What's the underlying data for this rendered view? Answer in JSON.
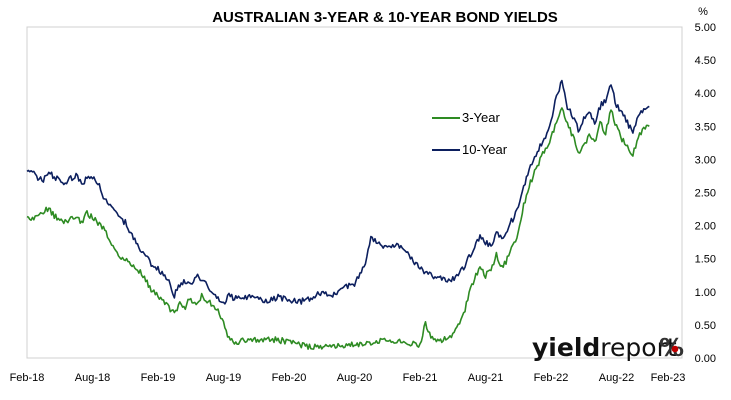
{
  "chart_data": {
    "type": "line",
    "title": "AUSTRALIAN 3-YEAR & 10-YEAR BOND YIELDS",
    "ylabel": "%",
    "ylim": [
      0,
      5
    ],
    "y_ticks": [
      "0.00",
      "0.50",
      "1.00",
      "1.50",
      "2.00",
      "2.50",
      "3.00",
      "3.50",
      "4.00",
      "4.50",
      "5.00"
    ],
    "x_ticks": [
      "Feb-18",
      "Aug-18",
      "Feb-19",
      "Aug-19",
      "Feb-20",
      "Aug-20",
      "Feb-21",
      "Aug-21",
      "Feb-22",
      "Aug-22",
      "Feb-23"
    ],
    "grid": false,
    "legend": "center-right",
    "series": [
      {
        "name": "3-Year",
        "color": "#2e8b23",
        "points": [
          [
            0,
            2.18
          ],
          [
            0.5,
            2.08
          ],
          [
            1,
            2.15
          ],
          [
            1.5,
            2.22
          ],
          [
            2,
            2.25
          ],
          [
            2.5,
            2.15
          ],
          [
            3,
            2.1
          ],
          [
            3.5,
            2.05
          ],
          [
            4,
            2.12
          ],
          [
            4.5,
            2.1
          ],
          [
            5,
            2.05
          ],
          [
            5.5,
            2.18
          ],
          [
            6,
            2.12
          ],
          [
            6.5,
            2.05
          ],
          [
            7,
            1.95
          ],
          [
            7.5,
            1.8
          ],
          [
            8,
            1.65
          ],
          [
            8.5,
            1.55
          ],
          [
            9,
            1.5
          ],
          [
            9.5,
            1.42
          ],
          [
            10,
            1.35
          ],
          [
            10.5,
            1.28
          ],
          [
            11,
            1.15
          ],
          [
            11.5,
            1.0
          ],
          [
            12,
            0.95
          ],
          [
            12.5,
            0.85
          ],
          [
            13,
            0.75
          ],
          [
            13.5,
            0.68
          ],
          [
            14,
            0.82
          ],
          [
            14.5,
            0.78
          ],
          [
            15,
            0.9
          ],
          [
            15.5,
            0.8
          ],
          [
            16,
            0.95
          ],
          [
            16.5,
            0.85
          ],
          [
            17,
            0.8
          ],
          [
            17.5,
            0.72
          ],
          [
            18,
            0.55
          ],
          [
            18.5,
            0.28
          ],
          [
            19,
            0.25
          ],
          [
            20,
            0.26
          ],
          [
            21,
            0.27
          ],
          [
            22,
            0.28
          ],
          [
            23,
            0.27
          ],
          [
            24,
            0.25
          ],
          [
            25,
            0.2
          ],
          [
            26,
            0.17
          ],
          [
            27,
            0.18
          ],
          [
            28,
            0.16
          ],
          [
            29,
            0.19
          ],
          [
            30,
            0.2
          ],
          [
            31,
            0.22
          ],
          [
            32,
            0.25
          ],
          [
            33,
            0.28
          ],
          [
            34,
            0.25
          ],
          [
            35,
            0.22
          ],
          [
            36,
            0.2
          ],
          [
            36.5,
            0.55
          ],
          [
            37,
            0.3
          ],
          [
            38,
            0.25
          ],
          [
            39,
            0.35
          ],
          [
            40,
            0.65
          ],
          [
            40.5,
            1.0
          ],
          [
            41,
            1.2
          ],
          [
            41.5,
            1.35
          ],
          [
            42,
            1.25
          ],
          [
            42.5,
            1.3
          ],
          [
            43,
            1.55
          ],
          [
            43.5,
            1.35
          ],
          [
            44,
            1.5
          ],
          [
            44.5,
            1.7
          ],
          [
            45,
            1.9
          ],
          [
            45.5,
            2.3
          ],
          [
            46,
            2.6
          ],
          [
            46.5,
            2.8
          ],
          [
            47,
            3.0
          ],
          [
            47.5,
            3.15
          ],
          [
            48,
            3.3
          ],
          [
            48.5,
            3.6
          ],
          [
            49,
            3.8
          ],
          [
            49.5,
            3.55
          ],
          [
            50,
            3.35
          ],
          [
            50.5,
            3.1
          ],
          [
            51,
            3.2
          ],
          [
            51.5,
            3.35
          ],
          [
            52,
            3.25
          ],
          [
            52.5,
            3.55
          ],
          [
            53,
            3.4
          ],
          [
            53.5,
            3.75
          ],
          [
            54,
            3.5
          ],
          [
            54.5,
            3.3
          ],
          [
            55,
            3.2
          ],
          [
            55.5,
            3.05
          ],
          [
            56,
            3.35
          ],
          [
            56.5,
            3.45
          ],
          [
            57,
            3.5
          ]
        ]
      },
      {
        "name": "10-Year",
        "color": "#0c1f5e",
        "points": [
          [
            0,
            2.85
          ],
          [
            0.5,
            2.82
          ],
          [
            1,
            2.72
          ],
          [
            1.5,
            2.68
          ],
          [
            2,
            2.82
          ],
          [
            2.5,
            2.72
          ],
          [
            3,
            2.7
          ],
          [
            3.5,
            2.62
          ],
          [
            4,
            2.72
          ],
          [
            4.5,
            2.75
          ],
          [
            5,
            2.65
          ],
          [
            5.5,
            2.7
          ],
          [
            6,
            2.72
          ],
          [
            6.5,
            2.65
          ],
          [
            7,
            2.45
          ],
          [
            7.5,
            2.35
          ],
          [
            8,
            2.2
          ],
          [
            8.5,
            2.1
          ],
          [
            9,
            2.05
          ],
          [
            9.5,
            1.9
          ],
          [
            10,
            1.75
          ],
          [
            10.5,
            1.6
          ],
          [
            11,
            1.5
          ],
          [
            11.5,
            1.4
          ],
          [
            12,
            1.35
          ],
          [
            12.5,
            1.25
          ],
          [
            13,
            1.15
          ],
          [
            13.5,
            0.95
          ],
          [
            14,
            1.1
          ],
          [
            14.5,
            1.15
          ],
          [
            15,
            1.1
          ],
          [
            15.5,
            1.25
          ],
          [
            16,
            1.15
          ],
          [
            16.5,
            1.1
          ],
          [
            17,
            1.0
          ],
          [
            17.5,
            0.9
          ],
          [
            18,
            0.8
          ],
          [
            18.5,
            0.95
          ],
          [
            19,
            0.9
          ],
          [
            20,
            0.92
          ],
          [
            21,
            0.9
          ],
          [
            22,
            0.85
          ],
          [
            23,
            0.92
          ],
          [
            24,
            0.88
          ],
          [
            25,
            0.85
          ],
          [
            26,
            0.9
          ],
          [
            27,
            1.0
          ],
          [
            28,
            0.95
          ],
          [
            29,
            1.05
          ],
          [
            30,
            1.12
          ],
          [
            31,
            1.45
          ],
          [
            31.5,
            1.8
          ],
          [
            32,
            1.75
          ],
          [
            33,
            1.65
          ],
          [
            34,
            1.7
          ],
          [
            35,
            1.55
          ],
          [
            36,
            1.35
          ],
          [
            37,
            1.25
          ],
          [
            38,
            1.2
          ],
          [
            38.5,
            1.15
          ],
          [
            39,
            1.2
          ],
          [
            40,
            1.35
          ],
          [
            41,
            1.7
          ],
          [
            41.5,
            1.85
          ],
          [
            42,
            1.75
          ],
          [
            42.5,
            1.7
          ],
          [
            43,
            1.9
          ],
          [
            43.5,
            1.8
          ],
          [
            44,
            1.95
          ],
          [
            44.5,
            2.1
          ],
          [
            45,
            2.3
          ],
          [
            45.5,
            2.6
          ],
          [
            46,
            2.85
          ],
          [
            46.5,
            3.0
          ],
          [
            47,
            3.2
          ],
          [
            47.5,
            3.35
          ],
          [
            48,
            3.6
          ],
          [
            48.5,
            3.95
          ],
          [
            49,
            4.2
          ],
          [
            49.5,
            3.8
          ],
          [
            50,
            3.65
          ],
          [
            50.5,
            3.45
          ],
          [
            51,
            3.6
          ],
          [
            51.5,
            3.75
          ],
          [
            52,
            3.55
          ],
          [
            52.5,
            3.8
          ],
          [
            53,
            3.9
          ],
          [
            53.5,
            4.15
          ],
          [
            54,
            3.8
          ],
          [
            54.5,
            3.75
          ],
          [
            55,
            3.55
          ],
          [
            55.5,
            3.4
          ],
          [
            56,
            3.65
          ],
          [
            56.5,
            3.75
          ],
          [
            57,
            3.8
          ]
        ]
      }
    ]
  },
  "branding": {
    "name_part1": "yield",
    "name_part2": "report",
    "symbol": "%"
  }
}
